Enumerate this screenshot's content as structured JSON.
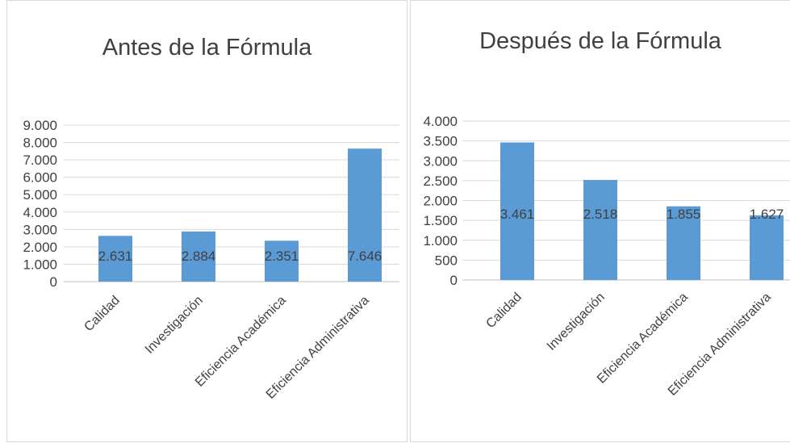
{
  "chart_data": [
    {
      "type": "bar",
      "title": "Antes de la Fórmula",
      "categories": [
        "Calidad",
        "Investigación",
        "Eficiencia Académica",
        "Eficiencia Administrativa"
      ],
      "values": [
        2631,
        2884,
        2351,
        7646
      ],
      "value_labels": [
        "2.631",
        "2.884",
        "2.351",
        "7.646"
      ],
      "ylim": [
        0,
        9000
      ],
      "yticks": [
        0,
        1000,
        2000,
        3000,
        4000,
        5000,
        6000,
        7000,
        8000,
        9000
      ],
      "ytick_labels": [
        "0",
        "1.000",
        "2.000",
        "3.000",
        "4.000",
        "5.000",
        "6.000",
        "7.000",
        "8.000",
        "9.000"
      ],
      "grid": true,
      "legend": "none",
      "bar_color": "#5b9bd5"
    },
    {
      "type": "bar",
      "title": "Después de la Fórmula",
      "categories": [
        "Calidad",
        "Investigación",
        "Eficiencia Académica",
        "Eficiencia Administrativa"
      ],
      "values": [
        3461,
        2518,
        1855,
        1627
      ],
      "value_labels": [
        "3.461",
        "2.518",
        "1.855",
        "1.627"
      ],
      "ylim": [
        0,
        4000
      ],
      "yticks": [
        0,
        500,
        1000,
        1500,
        2000,
        2500,
        3000,
        3500,
        4000
      ],
      "ytick_labels": [
        "0",
        "500",
        "1.000",
        "1.500",
        "2.000",
        "2.500",
        "3.000",
        "3.500",
        "4.000"
      ],
      "grid": true,
      "legend": "none",
      "bar_color": "#5b9bd5"
    }
  ]
}
